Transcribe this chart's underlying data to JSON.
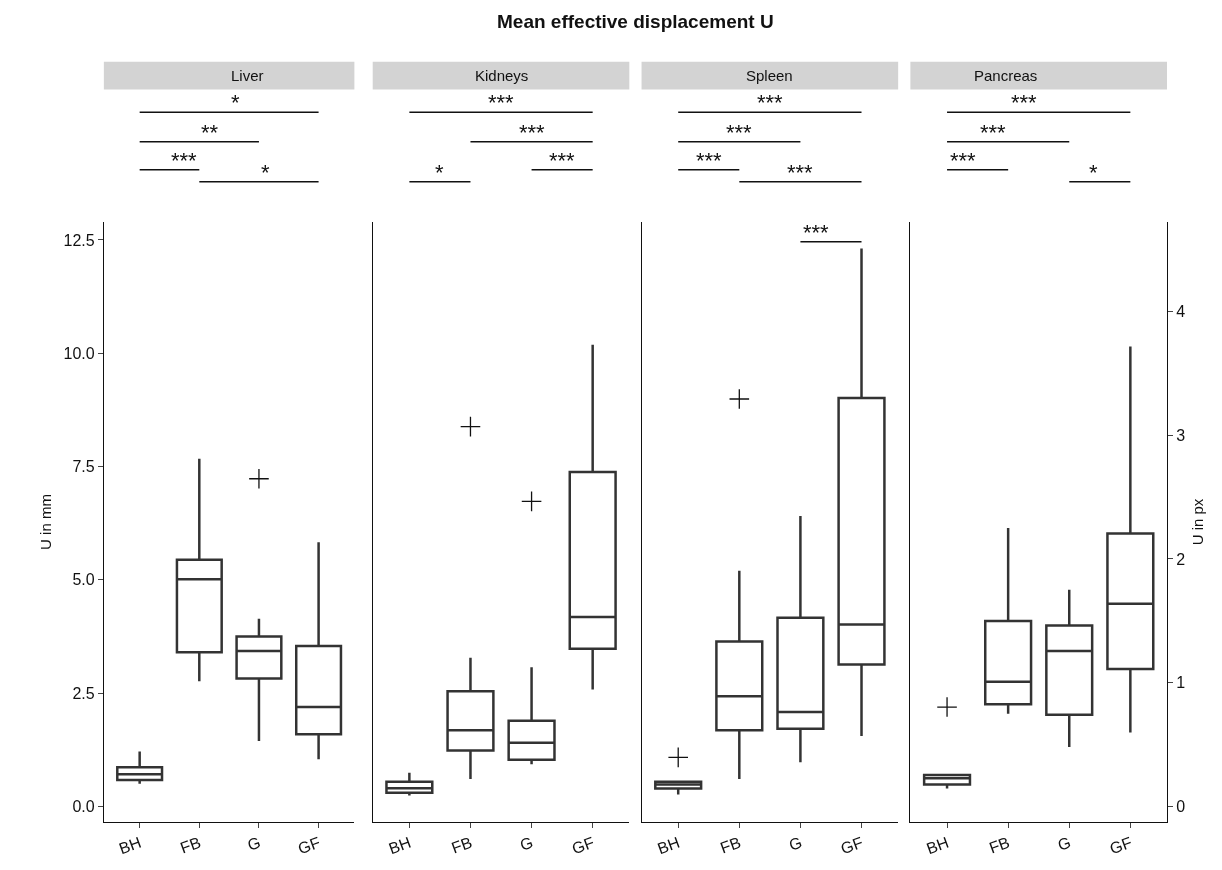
{
  "chart_data": [
    {
      "type": "other",
      "title": "Mean effective displacement U"
    },
    {
      "type": "box",
      "subtitle": "Liver",
      "ylabel": "U in mm",
      "categories": [
        "BH",
        "FB",
        "G",
        "GF"
      ],
      "ylim": [
        -0.35,
        12.9
      ],
      "yticks": [
        {
          "value": 0,
          "label": "0.0"
        },
        2.5,
        {
          "value": 5,
          "label": "5.0"
        },
        7.5,
        {
          "value": 10,
          "label": "10.0"
        },
        12.5
      ],
      "grid": false,
      "annotations": [
        "*",
        "**",
        "***",
        "*"
      ],
      "series": [
        {
          "color": "#333333",
          "boxes": [
            {
              "low": 0.5,
              "q1": 0.58,
              "median": 0.71,
              "q3": 0.86,
              "high": 1.21
            },
            {
              "low": 2.76,
              "q1": 3.4,
              "median": 5.01,
              "q3": 5.44,
              "high": 7.67
            },
            {
              "low": 1.44,
              "q1": 2.82,
              "median": 3.43,
              "q3": 3.75,
              "high": 4.14,
              "outliers": [
                7.23
              ]
            },
            {
              "low": 1.04,
              "q1": 1.59,
              "median": 2.19,
              "q3": 3.54,
              "high": 5.83
            }
          ]
        }
      ]
    },
    {
      "type": "box",
      "subtitle": "Kidneys",
      "categories": [
        "BH",
        "FB",
        "G",
        "GF"
      ],
      "ylim": [
        -0.35,
        12.9
      ],
      "tick_labels": "x",
      "grid": false,
      "annotations": [
        "***",
        "***",
        "***",
        "*"
      ],
      "series": [
        {
          "color": "#333333",
          "boxes": [
            {
              "low": 0.24,
              "q1": 0.3,
              "median": 0.4,
              "q3": 0.54,
              "high": 0.74
            },
            {
              "low": 0.6,
              "q1": 1.23,
              "median": 1.68,
              "q3": 2.54,
              "high": 3.28,
              "outliers": [
                8.38
              ]
            },
            {
              "low": 0.93,
              "q1": 1.03,
              "median": 1.4,
              "q3": 1.89,
              "high": 3.07,
              "outliers": [
                6.73
              ]
            },
            {
              "low": 2.58,
              "q1": 3.48,
              "median": 4.18,
              "q3": 7.38,
              "high": 10.19
            }
          ]
        }
      ]
    },
    {
      "type": "box",
      "subtitle": "Spleen",
      "categories": [
        "BH",
        "FB",
        "G",
        "GF"
      ],
      "ylim": [
        -0.35,
        12.9
      ],
      "tick_labels": "x",
      "grid": false,
      "annotations": [
        "***",
        "***",
        "***",
        "***",
        "***"
      ],
      "series": [
        {
          "color": "#333333",
          "boxes": [
            {
              "low": 0.26,
              "q1": 0.39,
              "median": 0.48,
              "q3": 0.54,
              "high": 0.54,
              "outliers": [
                1.08
              ]
            },
            {
              "low": 0.6,
              "q1": 1.68,
              "median": 2.43,
              "q3": 3.64,
              "high": 5.2,
              "outliers": [
                8.99
              ]
            },
            {
              "low": 0.97,
              "q1": 1.71,
              "median": 2.08,
              "q3": 4.16,
              "high": 6.41
            },
            {
              "low": 1.55,
              "q1": 3.13,
              "median": 4.01,
              "q3": 9.01,
              "high": 12.31
            }
          ]
        }
      ]
    },
    {
      "type": "box",
      "subtitle": "Pancreas",
      "y2label": "U in px",
      "categories": [
        "BH",
        "FB",
        "G",
        "GF"
      ],
      "ylim": [
        -0.35,
        12.9
      ],
      "y2lim": [
        -0.128,
        4.725
      ],
      "y2ticks": [
        0,
        1,
        2,
        3,
        4
      ],
      "tick_labels": [
        "x",
        "y2"
      ],
      "grid": false,
      "annotations": [
        "***",
        "***",
        "***",
        "*"
      ],
      "series": [
        {
          "color": "#333333",
          "boxes": [
            {
              "low": 0.39,
              "q1": 0.48,
              "median": 0.62,
              "q3": 0.69,
              "high": 0.69,
              "outliers": [
                2.19
              ]
            },
            {
              "low": 2.04,
              "q1": 2.25,
              "median": 2.75,
              "q3": 4.09,
              "high": 6.14
            },
            {
              "low": 1.31,
              "q1": 2.02,
              "median": 3.43,
              "q3": 3.99,
              "high": 4.78
            },
            {
              "low": 1.63,
              "q1": 3.03,
              "median": 4.47,
              "q3": 6.02,
              "high": 10.15
            }
          ]
        }
      ]
    }
  ]
}
